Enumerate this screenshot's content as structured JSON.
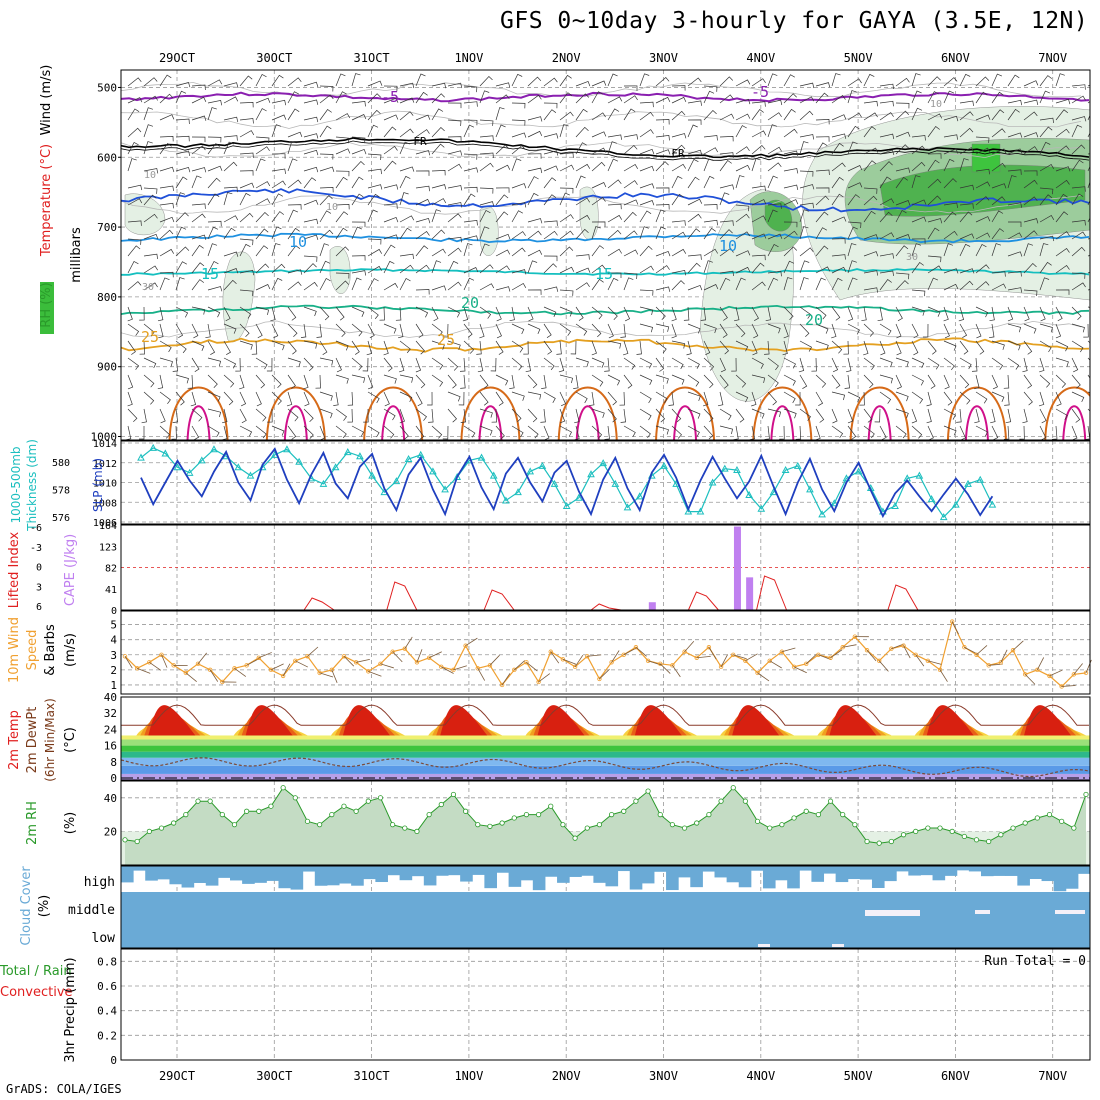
{
  "title": "GFS 0~10day 3-hourly for GAYA (3.5E, 12N)",
  "footer": "GrADS: COLA/IGES",
  "run_total_label": "Run Total = 0",
  "colors": {
    "rh_dark": "#4fb24f",
    "rh_mid": "#9ccc9c",
    "rh_light": "#e4f0e4",
    "wind_purple": "#8a1fb0",
    "fr_line": "#000000",
    "temp_blue": "#1f50d8",
    "temp_10": "#1e90e0",
    "temp_15": "#14bfbf",
    "temp_20": "#18b088",
    "temp_25": "#e4a020",
    "temp_30": "#d66a18",
    "temp_35": "#d0108a",
    "slp": "#1f3fbf",
    "thickness": "#1cbfbf",
    "cape": "#c080f0",
    "lifted": "#e02020",
    "wind10m": "#f0a030",
    "cloud": "#6aaad6",
    "rh2m_line": "#2a9a2a"
  },
  "chart_data": [
    {
      "panel": "upper-air",
      "type": "contour",
      "ylabels": [
        "RH (%)",
        "Temperature (°C)",
        "Wind (m/s)"
      ],
      "yaxis_title": "millibars",
      "y_ticks": [
        "500",
        "600",
        "700",
        "800",
        "900",
        "1000"
      ],
      "x_ticks_top": [
        "29OCT",
        "30OCT",
        "31OCT",
        "1NOV",
        "2NOV",
        "3NOV",
        "4NOV",
        "5NOV",
        "6NOV",
        "7NOV"
      ],
      "contour_labels": [
        "-5",
        "-5",
        "FR",
        "FR",
        "10",
        "10",
        "15",
        "15",
        "20",
        "20",
        "25",
        "25",
        "10",
        "10",
        "30",
        "30",
        "10"
      ]
    },
    {
      "panel": "thickness-slp",
      "type": "line",
      "ylabels_left": [
        "1000-500mb",
        "Thickness (dm)"
      ],
      "ylabels_right": [
        "SLP (mb)"
      ],
      "left_ticks": [
        "580",
        "578",
        "576"
      ],
      "right_ticks": [
        "1014",
        "1012",
        "1010",
        "1008",
        "1006"
      ],
      "slp_range": [
        1006,
        1014
      ],
      "thickness_range": [
        575.5,
        581.5
      ],
      "slp": [
        1010.5,
        1007.8,
        1010,
        1012.2,
        1010.2,
        1008.6,
        1011.1,
        1013.1,
        1010,
        1008.2,
        1011.8,
        1013.4,
        1010.3,
        1007.9,
        1010.8,
        1013.0,
        1009.9,
        1008.4,
        1011.6,
        1012.9,
        1009.4,
        1007.2,
        1010.8,
        1012.5,
        1009.3,
        1006.8,
        1010.6,
        1012.6,
        1009.5,
        1007.3,
        1010.9,
        1012.5,
        1010.0,
        1008.1,
        1011.0,
        1012.2,
        1009.1,
        1006.8,
        1010.3,
        1012.5,
        1009.4,
        1007.2,
        1011.0,
        1012.8,
        1010.5,
        1007.3,
        1010.2,
        1012.6,
        1010.4,
        1008.4,
        1010.1,
        1012.7,
        1009.6,
        1006.8,
        1010.0,
        1012.4,
        1009.3,
        1007.1,
        1010.0,
        1012.0,
        1009.2,
        1006.6,
        1008.9,
        1010.2,
        1008.6,
        1007.1,
        1008.8,
        1010.4,
        1008.8,
        1006.7,
        1008.6
      ],
      "thickness": [
        580.3,
        581.0,
        580.6,
        579.6,
        579.2,
        580.1,
        580.9,
        580.4,
        579.6,
        579.0,
        579.6,
        580.5,
        580.9,
        580.0,
        578.8,
        578.4,
        579.6,
        580.7,
        580.4,
        579.0,
        577.8,
        578.6,
        580.2,
        580.5,
        579.3,
        578.0,
        578.9,
        580.1,
        580.3,
        579.0,
        577.2,
        577.8,
        579.3,
        579.7,
        578.4,
        576.8,
        577.4,
        579.1,
        579.9,
        578.4,
        576.7,
        577.5,
        579.0,
        579.7,
        578.4,
        576.4,
        576.4,
        578.5,
        579.5,
        579.4,
        577.6,
        576.6,
        577.8,
        579.4,
        579.7,
        578.0,
        576.2,
        577.0,
        578.8,
        579.3,
        578.1,
        576.4,
        576.8,
        578.8,
        579.0,
        577.3,
        576.0,
        576.9,
        578.4,
        578.7,
        576.9
      ]
    },
    {
      "panel": "cape-li",
      "type": "bar",
      "ylabels": [
        "Lifted Index",
        "CAPE (J/kg)"
      ],
      "left_ticks": [
        "-6",
        "-3",
        "0",
        "3",
        "6"
      ],
      "right_ticks": [
        "164",
        "123",
        "82",
        "41",
        "0"
      ],
      "cape_range": [
        0,
        164
      ],
      "cape_bars": [
        {
          "i": 46,
          "v": 15
        },
        {
          "i": 53,
          "v": 161
        },
        {
          "i": 54,
          "v": 63
        }
      ]
    },
    {
      "panel": "wind10m",
      "type": "line",
      "ylabels": [
        "10m Wind",
        "Speed",
        "& Barbs",
        "(m/s)"
      ],
      "y_ticks": [
        "5",
        "4",
        "3",
        "2",
        "1"
      ],
      "ylim": [
        0.4,
        5.9
      ],
      "speed": [
        2.9,
        2.1,
        2.5,
        3.0,
        2.3,
        1.8,
        2.4,
        2.0,
        1.2,
        2.1,
        2.3,
        2.8,
        2.0,
        1.6,
        2.6,
        2.9,
        1.8,
        2.0,
        2.9,
        2.5,
        1.9,
        2.4,
        3.2,
        3.4,
        2.5,
        2.8,
        2.2,
        2.0,
        3.6,
        2.1,
        2.3,
        1.0,
        2.0,
        2.5,
        1.2,
        3.2,
        2.7,
        2.2,
        2.9,
        1.4,
        2.5,
        3.0,
        3.5,
        2.6,
        2.4,
        2.3,
        3.2,
        2.8,
        3.5,
        2.2,
        3.0,
        2.6,
        1.8,
        2.6,
        3.2,
        2.2,
        2.4,
        3.0,
        2.8,
        3.5,
        4.2,
        3.3,
        2.6,
        3.4,
        3.6,
        3.0,
        2.6,
        2.0,
        5.2,
        3.5,
        3.0,
        2.3,
        2.5,
        3.3,
        1.7,
        2.0,
        1.6,
        0.9,
        1.7,
        1.8
      ]
    },
    {
      "panel": "temp2m",
      "type": "area",
      "ylabels": [
        "2m Temp",
        "2m DewPt",
        "(6hr Min/Max)",
        "(°C)"
      ],
      "y_ticks": [
        "40",
        "32",
        "24",
        "16",
        "8",
        "0"
      ],
      "ylim": [
        -1,
        40
      ]
    },
    {
      "panel": "rh2m",
      "type": "area",
      "ylabels": [
        "2m RH",
        "(%)"
      ],
      "y_ticks": [
        "40",
        "20"
      ],
      "ylim": [
        0,
        50
      ],
      "rh": [
        15,
        14,
        20,
        22,
        25,
        30,
        38,
        38,
        30,
        24,
        32,
        32,
        35,
        46,
        40,
        26,
        24,
        30,
        35,
        32,
        38,
        40,
        24,
        22,
        20,
        30,
        36,
        42,
        32,
        24,
        23,
        25,
        28,
        30,
        30,
        35,
        24,
        16,
        22,
        24,
        30,
        32,
        38,
        44,
        30,
        24,
        22,
        25,
        30,
        38,
        46,
        38,
        26,
        22,
        24,
        28,
        32,
        30,
        38,
        30,
        24,
        14,
        13,
        14,
        18,
        20,
        22,
        22,
        20,
        17,
        15,
        14,
        18,
        22,
        25,
        28,
        30,
        26,
        22,
        42
      ]
    },
    {
      "panel": "cloud",
      "type": "heatmap",
      "ylabels": [
        "Cloud Cover",
        "(%)"
      ],
      "levels": [
        "high",
        "middle",
        "low"
      ]
    },
    {
      "panel": "precip",
      "type": "bar",
      "ylabels": [
        "Total / Rain",
        "Convective",
        "3hr Precip (mm)"
      ],
      "y_ticks": [
        "0.8",
        "0.6",
        "0.4",
        "0.2",
        "0"
      ],
      "ylim": [
        0,
        0.9
      ],
      "values": [],
      "x_ticks_bottom": [
        "29OCT",
        "30OCT",
        "31OCT",
        "1NOV",
        "2NOV",
        "3NOV",
        "4NOV",
        "5NOV",
        "6NOV",
        "7NOV"
      ]
    }
  ]
}
